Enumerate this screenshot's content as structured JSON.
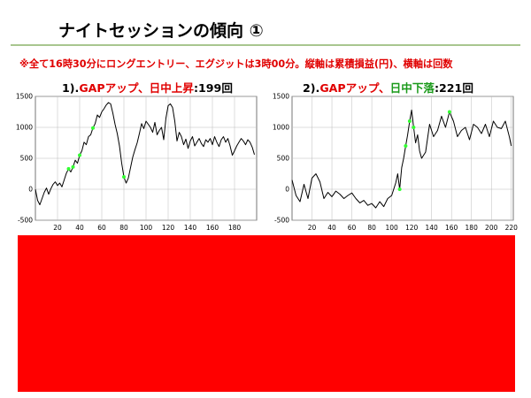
{
  "slide": {
    "title": "ナイトセッションの傾向 ①",
    "note_parts": [
      "※全て",
      "16時30分",
      "にロングエントリー、エグジットは",
      "3時00分",
      "。縦軸は累積損益(円)、横軸は回数"
    ]
  },
  "chart_data": [
    {
      "type": "line",
      "title_parts": [
        {
          "text": "1).",
          "color": "k"
        },
        {
          "text": "GAPアップ、日中上昇",
          "color": "r"
        },
        {
          "text": ":199回",
          "color": "k"
        }
      ],
      "xlabel": "",
      "ylabel": "",
      "xlim": [
        0,
        200
      ],
      "ylim": [
        -500,
        1500
      ],
      "x_ticks": [
        20,
        40,
        60,
        80,
        100,
        120,
        140,
        160,
        180
      ],
      "y_ticks": [
        -500,
        0,
        500,
        1000,
        1500
      ],
      "grid": true,
      "line_color": "#000000",
      "marker_color": "#33ff33",
      "series": [
        {
          "x": [
            0,
            2,
            4,
            6,
            8,
            10,
            12,
            14,
            16,
            18,
            20,
            22,
            24,
            26,
            28,
            30,
            32,
            34,
            36,
            38,
            40,
            42,
            44,
            46,
            48,
            50,
            52,
            54,
            56,
            58,
            60,
            62,
            64,
            66,
            68,
            70,
            72,
            74,
            76,
            78,
            80,
            82,
            84,
            86,
            88,
            90,
            92,
            94,
            96,
            98,
            100,
            102,
            104,
            106,
            108,
            110,
            112,
            114,
            116,
            118,
            120,
            122,
            124,
            126,
            128,
            130,
            132,
            134,
            136,
            138,
            140,
            142,
            144,
            146,
            148,
            150,
            152,
            154,
            156,
            158,
            160,
            162,
            164,
            166,
            168,
            170,
            172,
            174,
            176,
            178,
            180,
            182,
            184,
            186,
            188,
            190,
            192,
            194,
            196,
            198
          ],
          "y": [
            0,
            -180,
            -250,
            -150,
            -50,
            20,
            -80,
            10,
            80,
            120,
            60,
            100,
            40,
            150,
            260,
            330,
            280,
            360,
            470,
            420,
            550,
            620,
            760,
            720,
            850,
            880,
            990,
            1060,
            1200,
            1160,
            1250,
            1300,
            1360,
            1400,
            1380,
            1230,
            1050,
            900,
            700,
            420,
            200,
            100,
            180,
            350,
            520,
            640,
            750,
            900,
            1060,
            980,
            1100,
            1050,
            1000,
            920,
            1080,
            880,
            950,
            1000,
            800,
            1150,
            1350,
            1380,
            1320,
            1100,
            780,
            920,
            850,
            720,
            810,
            660,
            780,
            850,
            700,
            760,
            820,
            740,
            690,
            800,
            760,
            820,
            720,
            850,
            760,
            690,
            800,
            850,
            760,
            820,
            700,
            550,
            620,
            700,
            760,
            820,
            780,
            720,
            800,
            760,
            680,
            560
          ],
          "markers_x": [
            30,
            34,
            40,
            52,
            80
          ]
        }
      ]
    },
    {
      "type": "line",
      "title_parts": [
        {
          "text": "2).",
          "color": "k"
        },
        {
          "text": "GAPアップ、",
          "color": "r"
        },
        {
          "text": "日中下落",
          "color": "g"
        },
        {
          "text": ":221回",
          "color": "k"
        }
      ],
      "xlabel": "",
      "ylabel": "",
      "xlim": [
        0,
        222
      ],
      "ylim": [
        -500,
        1500
      ],
      "x_ticks": [
        20,
        40,
        60,
        80,
        100,
        120,
        140,
        160,
        180,
        200,
        220
      ],
      "y_ticks": [
        -500,
        0,
        500,
        1000,
        1500
      ],
      "grid": true,
      "line_color": "#000000",
      "marker_color": "#33ff33",
      "series": [
        {
          "x": [
            0,
            4,
            8,
            12,
            16,
            20,
            24,
            28,
            32,
            36,
            40,
            44,
            48,
            52,
            56,
            60,
            64,
            68,
            72,
            76,
            80,
            84,
            88,
            92,
            96,
            100,
            104,
            106,
            108,
            110,
            112,
            114,
            116,
            118,
            120,
            122,
            124,
            126,
            128,
            130,
            134,
            138,
            142,
            146,
            150,
            154,
            158,
            162,
            166,
            170,
            174,
            178,
            182,
            186,
            190,
            194,
            198,
            202,
            206,
            210,
            214,
            218,
            220
          ],
          "y": [
            150,
            -100,
            -200,
            80,
            -150,
            180,
            250,
            120,
            -150,
            -50,
            -120,
            -30,
            -80,
            -150,
            -100,
            -60,
            -150,
            -220,
            -180,
            -260,
            -230,
            -300,
            -200,
            -280,
            -150,
            -100,
            100,
            250,
            0,
            350,
            500,
            700,
            880,
            1100,
            1280,
            1000,
            750,
            880,
            620,
            500,
            600,
            1050,
            850,
            950,
            1180,
            1000,
            1250,
            1100,
            850,
            950,
            1000,
            800,
            1050,
            1000,
            900,
            1050,
            850,
            1100,
            1000,
            980,
            1100,
            850,
            700
          ],
          "markers_x": [
            108,
            114,
            118,
            122,
            158
          ]
        }
      ]
    }
  ]
}
